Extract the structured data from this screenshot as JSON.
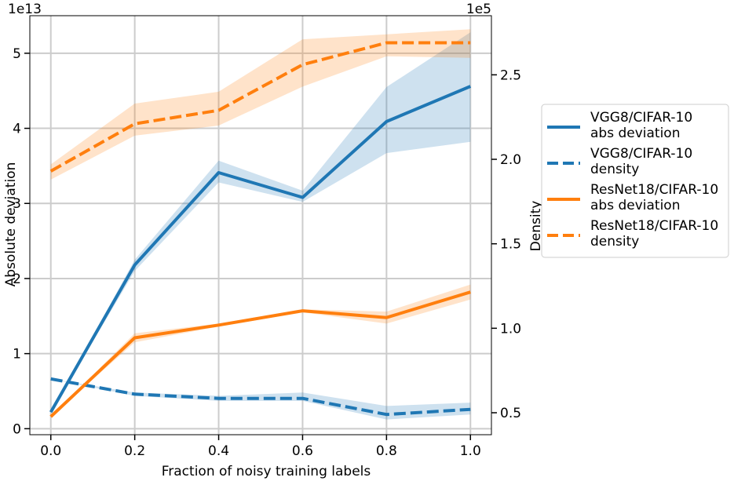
{
  "chart_data": {
    "type": "line",
    "x": [
      0.0,
      0.2,
      0.4,
      0.6,
      0.8,
      1.0
    ],
    "xlabel": "Fraction of noisy training labels",
    "xlim": [
      -0.05,
      1.05
    ],
    "xticks": [
      0.0,
      0.2,
      0.4,
      0.6,
      0.8,
      1.0
    ],
    "xtick_labels": [
      "0.0",
      "0.2",
      "0.4",
      "0.6",
      "0.8",
      "1.0"
    ],
    "left_axis": {
      "label": "Absolute deviation",
      "offset_text": "1e13",
      "ylim": [
        -0.08,
        5.5
      ],
      "ticks": [
        0,
        1,
        2,
        3,
        4,
        5
      ],
      "tick_labels": [
        "0",
        "1",
        "2",
        "3",
        "4",
        "5"
      ]
    },
    "right_axis": {
      "label": "Density",
      "offset_text": "1e5",
      "ylim": [
        0.37,
        2.85
      ],
      "ticks": [
        0.5,
        1.0,
        1.5,
        2.0,
        2.5
      ],
      "tick_labels": [
        "0.5",
        "1.0",
        "1.5",
        "2.0",
        "2.5"
      ]
    },
    "grid": true,
    "legend_position": "outside-right",
    "series": [
      {
        "name": "VGG8/CIFAR-10 abs deviation",
        "legend_lines": [
          "VGG8/CIFAR-10",
          "abs deviation"
        ],
        "axis": "left",
        "style": "solid",
        "color": "#1f77b4",
        "values": [
          0.22,
          2.18,
          3.41,
          3.08,
          4.09,
          4.56
        ],
        "lower": [
          0.22,
          2.1,
          3.28,
          3.02,
          3.67,
          3.82
        ],
        "upper": [
          0.22,
          2.25,
          3.57,
          3.17,
          4.55,
          5.28
        ]
      },
      {
        "name": "VGG8/CIFAR-10 density",
        "legend_lines": [
          "VGG8/CIFAR-10",
          "density"
        ],
        "axis": "right",
        "style": "dashed",
        "color": "#1f77b4",
        "values": [
          0.7,
          0.61,
          0.585,
          0.585,
          0.49,
          0.52
        ],
        "lower": [
          0.7,
          0.6,
          0.57,
          0.57,
          0.46,
          0.49
        ],
        "upper": [
          0.7,
          0.62,
          0.6,
          0.62,
          0.54,
          0.56
        ]
      },
      {
        "name": "ResNet18/CIFAR-10 abs deviation",
        "legend_lines": [
          "ResNet18/CIFAR-10",
          "abs deviation"
        ],
        "axis": "left",
        "style": "solid",
        "color": "#ff7f0e",
        "values": [
          0.16,
          1.21,
          1.38,
          1.57,
          1.48,
          1.82
        ],
        "lower": [
          0.16,
          1.15,
          1.36,
          1.55,
          1.4,
          1.72
        ],
        "upper": [
          0.16,
          1.27,
          1.4,
          1.59,
          1.56,
          1.92
        ]
      },
      {
        "name": "ResNet18/CIFAR-10 density",
        "legend_lines": [
          "ResNet18/CIFAR-10",
          "density"
        ],
        "axis": "right",
        "style": "dashed",
        "color": "#ff7f0e",
        "values": [
          1.93,
          2.21,
          2.29,
          2.56,
          2.69,
          2.69
        ],
        "lower": [
          1.88,
          2.14,
          2.2,
          2.43,
          2.61,
          2.6
        ],
        "upper": [
          1.97,
          2.33,
          2.4,
          2.71,
          2.74,
          2.77
        ]
      }
    ]
  }
}
